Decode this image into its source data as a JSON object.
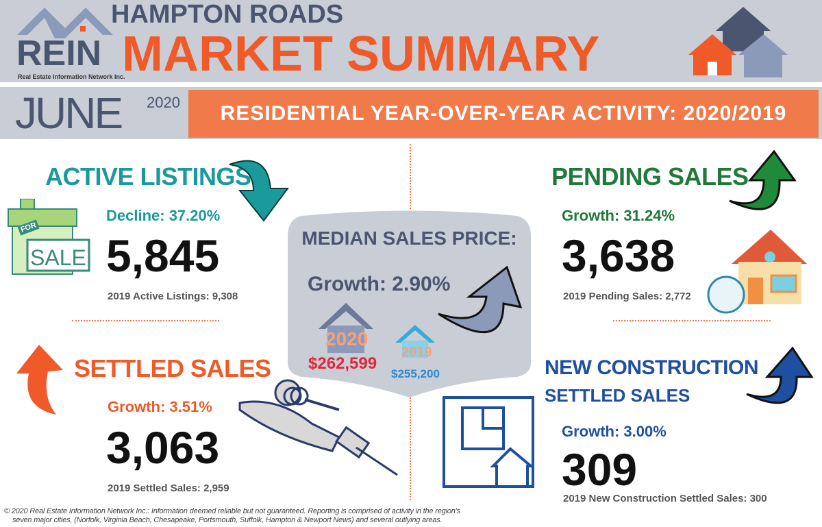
{
  "header": {
    "logo_text": "REIN",
    "logo_tagline": "Real Estate Information Network Inc.",
    "region": "HAMPTON ROADS",
    "title": "MARKET SUMMARY"
  },
  "period": {
    "month": "JUNE",
    "year": "2020",
    "banner": "RESIDENTIAL YEAR-OVER-YEAR ACTIVITY: 2020/2019"
  },
  "colors": {
    "header_bg": "#c9ced6",
    "accent_orange": "#f05a28",
    "active": "#1a9a9a",
    "pending": "#1f7a3a",
    "settled": "#f05a28",
    "new_construction": "#1e4fa0",
    "slate": "#4a5670"
  },
  "active_listings": {
    "title": "ACTIVE LISTINGS",
    "change": "Decline: 37.20%",
    "value": "5,845",
    "prior": "2019 Active Listings: 9,308",
    "icon": "for-sale-store-icon",
    "sign_top": "FOR",
    "sign": "SALE",
    "arrow": "arrow-down"
  },
  "pending_sales": {
    "title": "PENDING SALES",
    "change": "Growth: 31.24%",
    "value": "3,638",
    "prior": "2019 Pending Sales: 2,772",
    "icon": "house-icon",
    "arrow": "arrow-up"
  },
  "median": {
    "title": "MEDIAN SALES PRICE:",
    "change": "Growth: 2.90%",
    "year_2020": "2020",
    "price_2020": "$262,599",
    "year_2019": "2019",
    "price_2019": "$255,200",
    "arrow": "arrow-up"
  },
  "settled_sales": {
    "title": "SETTLED SALES",
    "change": "Growth: 3.51%",
    "value": "3,063",
    "prior": "2019 Settled Sales: 2,959",
    "icon": "hand-keys-icon",
    "arrow": "arrow-up"
  },
  "new_construction": {
    "title": "NEW CONSTRUCTION",
    "subtitle": "SETTLED SALES",
    "change": "Growth: 3.00%",
    "value": "309",
    "prior": "2019 New Construction Settled Sales: 300",
    "icon": "blueprint-icon",
    "arrow": "arrow-up"
  },
  "footer": {
    "line1": "© 2020 Real Estate Information Network Inc.: Information deemed reliable but not guaranteed. Reporting is comprised of activity in the region's",
    "line2": "seven major cities, (Norfolk, Virginia Beach, Chesapeake, Portsmouth, Suffolk, Hampton & Newport News) and several outlying areas."
  }
}
